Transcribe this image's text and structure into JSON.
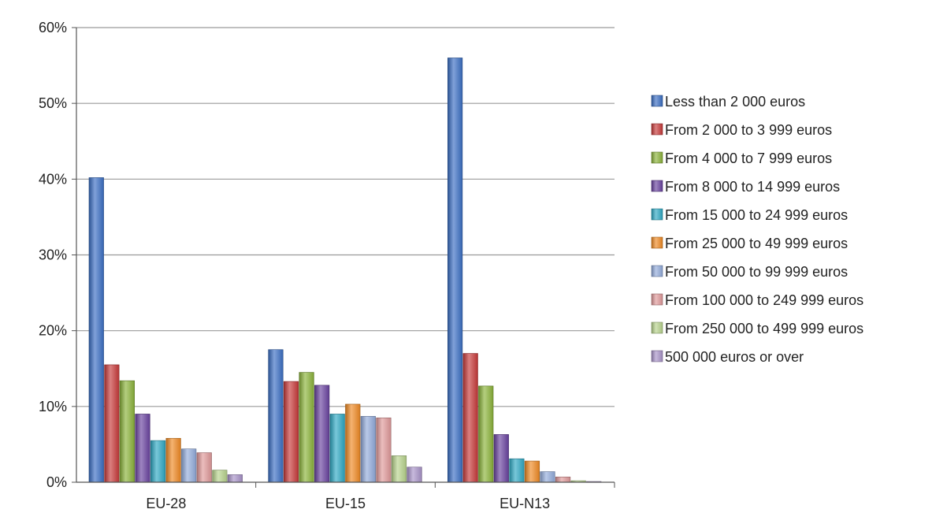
{
  "chart_data": {
    "type": "bar",
    "title": "",
    "xlabel": "",
    "ylabel": "",
    "ylim": [
      0,
      60
    ],
    "y_ticks": [
      "0%",
      "10%",
      "20%",
      "30%",
      "40%",
      "50%",
      "60%"
    ],
    "y_tick_values": [
      0,
      10,
      20,
      30,
      40,
      50,
      60
    ],
    "grid": true,
    "legend_position": "right",
    "categories": [
      "EU-28",
      "EU-15",
      "EU-N13"
    ],
    "series": [
      {
        "name": "Less than 2 000 euros",
        "color": "#3b6fc4",
        "values": [
          40.2,
          17.5,
          56
        ]
      },
      {
        "name": "From 2 000 to 3 999 euros",
        "color": "#c83a3a",
        "values": [
          15.5,
          13.3,
          17
        ]
      },
      {
        "name": "From 4 000 to 7 999 euros",
        "color": "#8bb33a",
        "values": [
          13.4,
          14.5,
          12.7
        ]
      },
      {
        "name": "From 8 000 to 14 999 euros",
        "color": "#6a43a0",
        "values": [
          9,
          12.8,
          6.3
        ]
      },
      {
        "name": "From 15 000 to 24 999 euros",
        "color": "#2fa9c4",
        "values": [
          5.5,
          9,
          3.1
        ]
      },
      {
        "name": "From 25 000 to 49 999 euros",
        "color": "#f08a24",
        "values": [
          5.8,
          10.3,
          2.8
        ]
      },
      {
        "name": "From 50 000 to 99 999 euros",
        "color": "#93acdc",
        "values": [
          4.4,
          8.7,
          1.4
        ]
      },
      {
        "name": "From 100 000 to 249 999 euros",
        "color": "#e0999a",
        "values": [
          3.9,
          8.5,
          0.7
        ]
      },
      {
        "name": "From 250 000 to 499 999 euros",
        "color": "#b8d48d",
        "values": [
          1.6,
          3.5,
          0.2
        ]
      },
      {
        "name": "500 000 euros or over",
        "color": "#a994c9",
        "values": [
          1,
          2,
          0.1
        ]
      }
    ]
  }
}
